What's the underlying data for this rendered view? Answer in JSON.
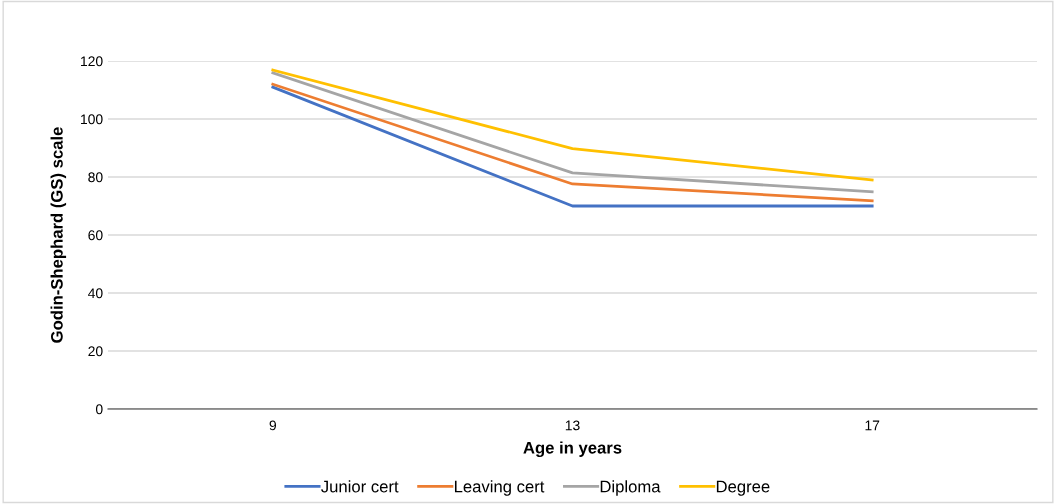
{
  "chart_data": {
    "type": "line",
    "xlabel": "Age in years",
    "ylabel": "Godin-Shephard (GS) scale",
    "categories": [
      "9",
      "13",
      "17"
    ],
    "series": [
      {
        "name": "Junior cert",
        "color": "#4472c4",
        "values": [
          111,
          70,
          70
        ]
      },
      {
        "name": "Leaving cert",
        "color": "#ed7d31",
        "values": [
          112,
          77.6,
          71.8
        ]
      },
      {
        "name": "Diploma",
        "color": "#a5a5a5",
        "values": [
          115.9,
          81.4,
          74.9
        ]
      },
      {
        "name": "Degree",
        "color": "#ffc000",
        "values": [
          116.9,
          89.8,
          79
        ]
      }
    ],
    "ylim": [
      0,
      120
    ],
    "yticks": [
      0,
      20,
      40,
      60,
      80,
      100,
      120
    ],
    "grid": "y",
    "legend": "bottom",
    "marker": "none",
    "line_style": "solid"
  }
}
